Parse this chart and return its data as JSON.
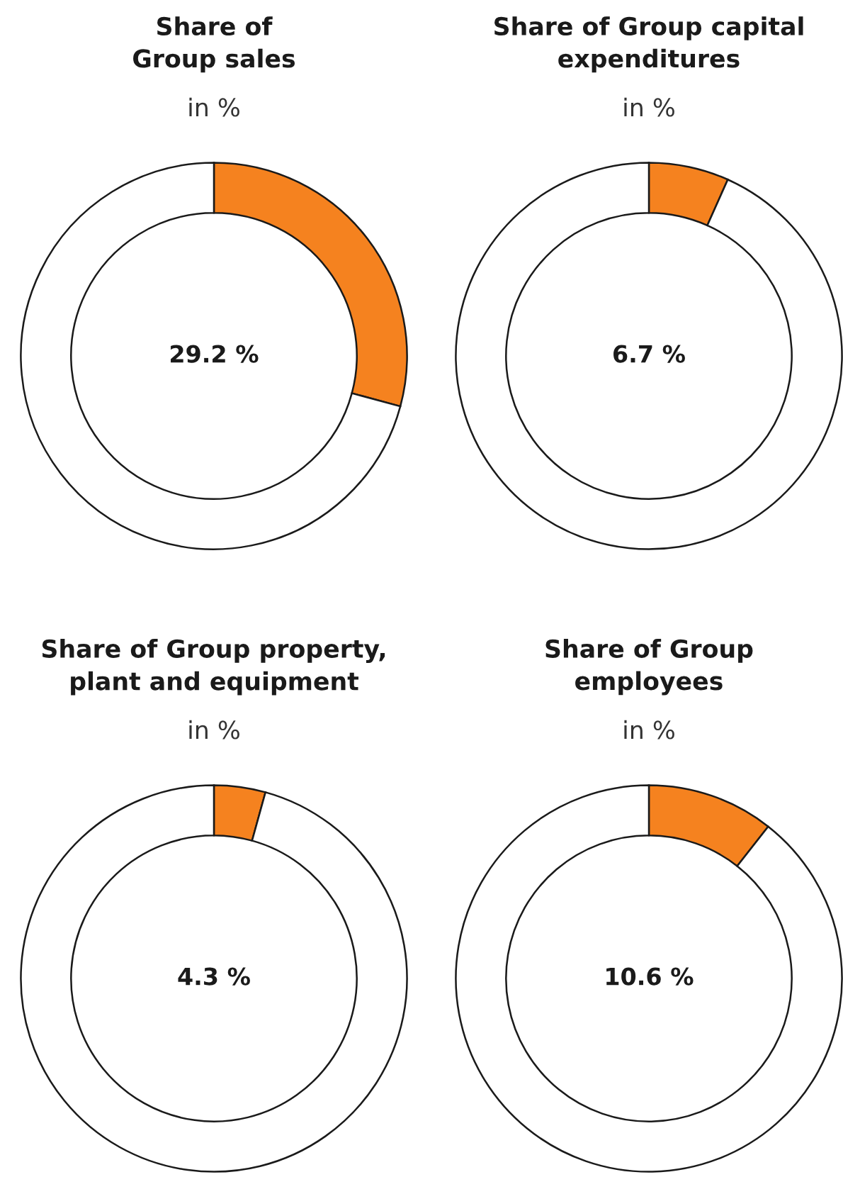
{
  "chart_data": [
    {
      "type": "donut",
      "title": "Share of\nGroup sales",
      "subtitle": "in %",
      "categories": [
        null,
        null
      ],
      "values": [
        29.2,
        70.8
      ],
      "colors": [
        "#f5821f",
        "#ffffff"
      ],
      "value_labels": [
        "29.2 %",
        null
      ]
    },
    {
      "type": "donut",
      "title": "Share of Group capital\nexpenditures",
      "subtitle": "in %",
      "categories": [
        null,
        null
      ],
      "values": [
        6.7,
        93.3
      ],
      "colors": [
        "#f5821f",
        "#ffffff"
      ],
      "value_labels": [
        "6.7 %",
        null
      ]
    },
    {
      "type": "donut",
      "title": "Share of Group property,\nplant and equipment",
      "subtitle": "in %",
      "categories": [
        null,
        null
      ],
      "values": [
        4.3,
        95.7
      ],
      "colors": [
        "#f5821f",
        "#ffffff"
      ],
      "value_labels": [
        "4.3 %",
        null
      ]
    },
    {
      "type": "donut",
      "title": "Share of Group\nemployees",
      "subtitle": "in %",
      "categories": [
        null,
        null
      ],
      "values": [
        10.6,
        89.4
      ],
      "colors": [
        "#f5821f",
        "#ffffff"
      ],
      "value_labels": [
        "10.6 %",
        null
      ]
    }
  ]
}
